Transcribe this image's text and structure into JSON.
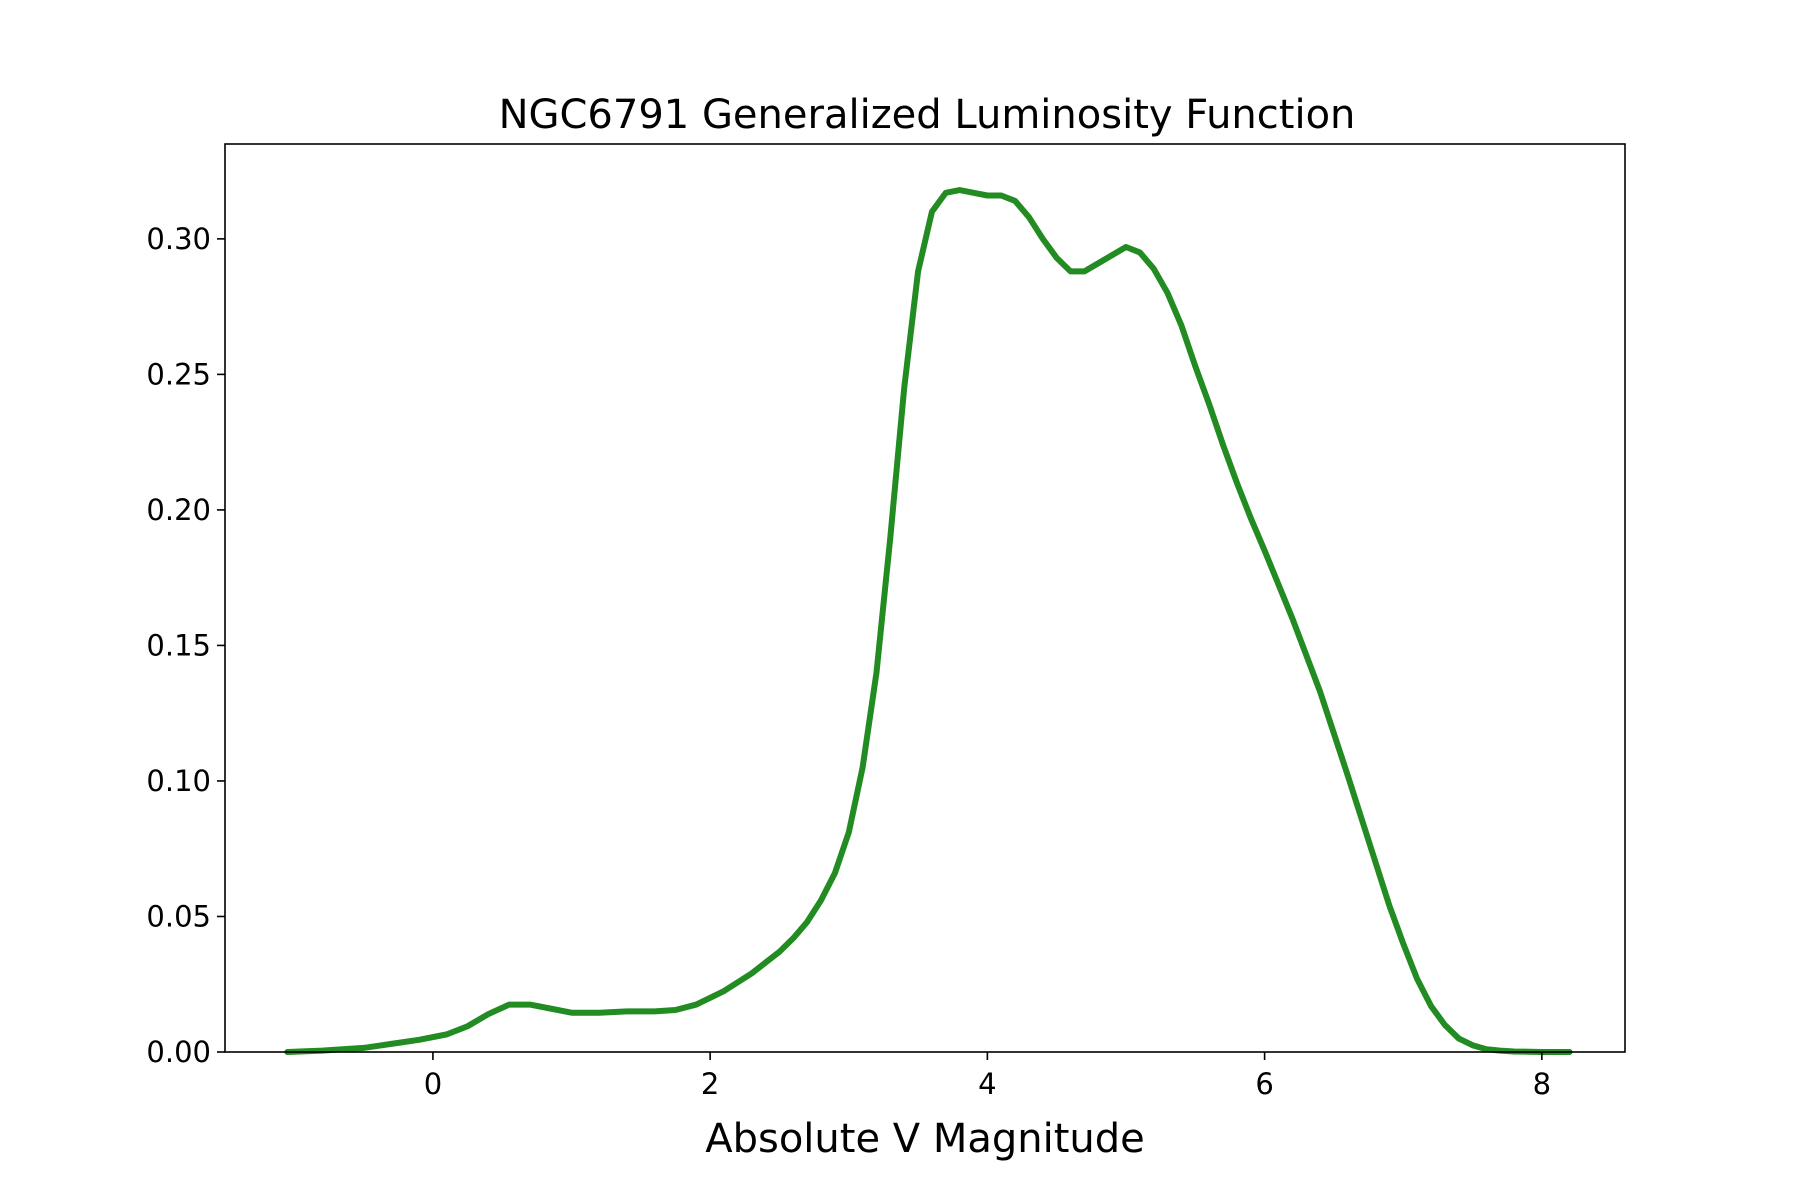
{
  "chart_data": {
    "type": "line",
    "title": "NGC6791 Generalized Luminosity Function",
    "xlabel": "Absolute V Magnitude",
    "ylabel": "",
    "xlim": [
      -1.5,
      8.6
    ],
    "ylim": [
      0.0,
      0.335
    ],
    "x_ticks": [
      0,
      2,
      4,
      6,
      8
    ],
    "x_tick_labels": [
      "0",
      "2",
      "4",
      "6",
      "8"
    ],
    "y_ticks": [
      0.0,
      0.05,
      0.1,
      0.15,
      0.2,
      0.25,
      0.3
    ],
    "y_tick_labels": [
      "0.00",
      "0.05",
      "0.10",
      "0.15",
      "0.20",
      "0.25",
      "0.30"
    ],
    "grid": false,
    "legend": "none",
    "series": [
      {
        "color": "#228b22",
        "x": [
          -1.05,
          -0.8,
          -0.5,
          -0.3,
          -0.1,
          0.1,
          0.25,
          0.4,
          0.55,
          0.7,
          0.85,
          1.0,
          1.2,
          1.4,
          1.6,
          1.75,
          1.9,
          2.1,
          2.3,
          2.5,
          2.6,
          2.7,
          2.8,
          2.9,
          3.0,
          3.1,
          3.2,
          3.3,
          3.4,
          3.5,
          3.6,
          3.7,
          3.8,
          3.9,
          4.0,
          4.1,
          4.2,
          4.3,
          4.4,
          4.5,
          4.6,
          4.7,
          4.8,
          4.9,
          5.0,
          5.1,
          5.2,
          5.3,
          5.4,
          5.5,
          5.6,
          5.7,
          5.8,
          5.9,
          6.0,
          6.2,
          6.4,
          6.6,
          6.8,
          6.9,
          7.0,
          7.1,
          7.2,
          7.3,
          7.4,
          7.5,
          7.6,
          7.7,
          7.8,
          8.0,
          8.2
        ],
        "y": [
          0.0,
          0.0005,
          0.0015,
          0.003,
          0.0045,
          0.0065,
          0.0095,
          0.014,
          0.0175,
          0.0175,
          0.016,
          0.0145,
          0.0145,
          0.015,
          0.015,
          0.0155,
          0.0175,
          0.0225,
          0.029,
          0.037,
          0.042,
          0.048,
          0.056,
          0.066,
          0.081,
          0.105,
          0.14,
          0.19,
          0.245,
          0.288,
          0.31,
          0.317,
          0.318,
          0.317,
          0.316,
          0.316,
          0.314,
          0.308,
          0.3,
          0.293,
          0.288,
          0.288,
          0.291,
          0.294,
          0.297,
          0.295,
          0.289,
          0.28,
          0.268,
          0.253,
          0.239,
          0.224,
          0.21,
          0.197,
          0.185,
          0.16,
          0.133,
          0.102,
          0.07,
          0.054,
          0.04,
          0.027,
          0.017,
          0.01,
          0.005,
          0.0025,
          0.001,
          0.0005,
          0.0002,
          0.0,
          0.0
        ]
      }
    ]
  }
}
